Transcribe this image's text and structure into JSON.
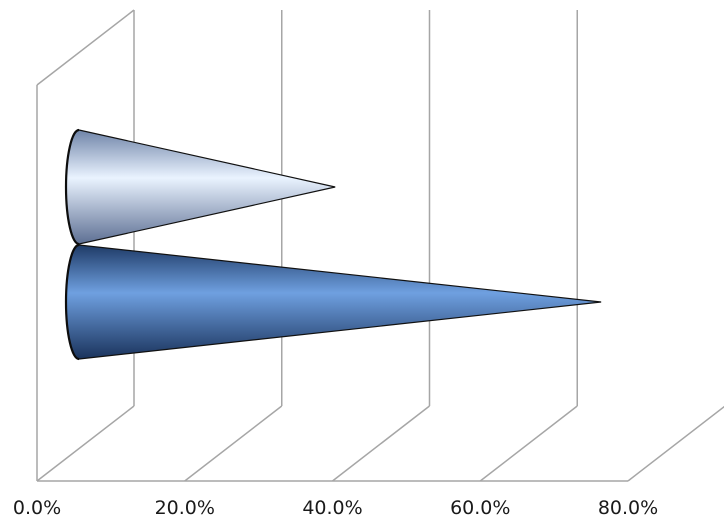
{
  "chart_data": {
    "type": "bar",
    "orientation": "horizontal",
    "style": "3d-cone",
    "title": "",
    "xlabel": "",
    "ylabel": "",
    "xlim": [
      0,
      80
    ],
    "x_ticks": [
      0,
      20,
      40,
      60,
      80
    ],
    "x_tick_labels": [
      "0.0%",
      "20.0%",
      "40.0%",
      "60.0%",
      "80.0%"
    ],
    "grid": true,
    "legend": "none",
    "series": [
      {
        "values": [
          34
        ],
        "color": "#a9bfe6"
      },
      {
        "values": [
          70
        ],
        "color": "#4f7fc0"
      }
    ]
  }
}
